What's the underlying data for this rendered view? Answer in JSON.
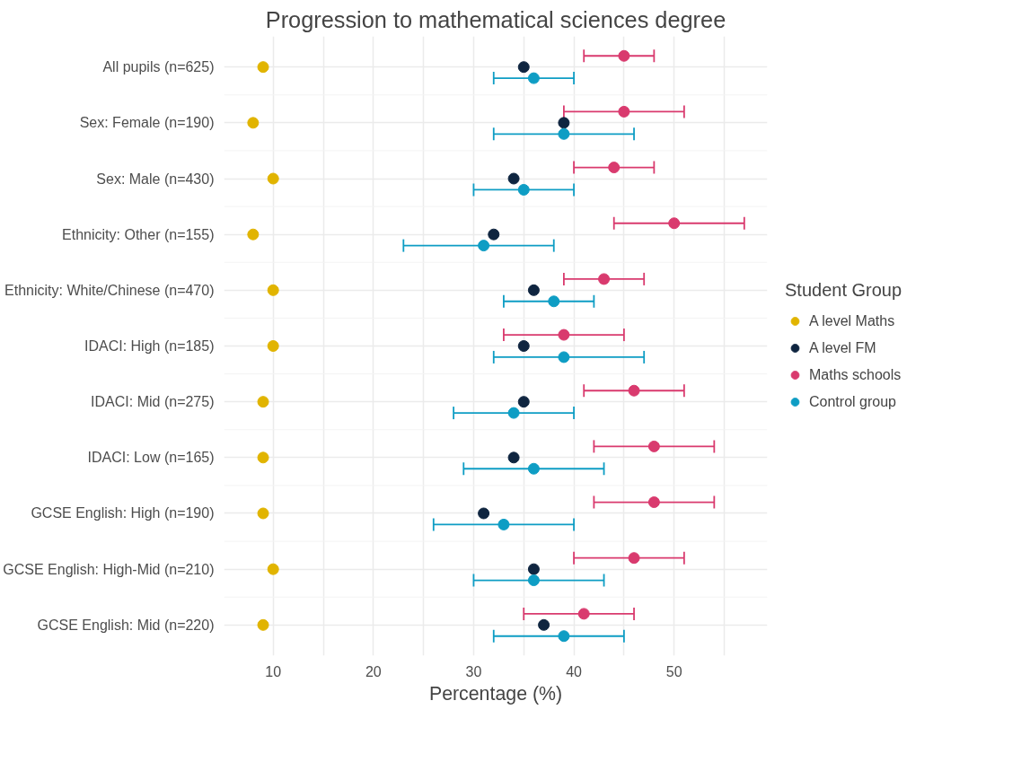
{
  "chart_data": {
    "type": "scatter",
    "orientation": "horizontal",
    "title": "Progression to mathematical sciences degree",
    "xlabel": "Percentage (%)",
    "legend_title": "Student Group",
    "categories": [
      "All pupils (n=625)",
      "Sex: Female (n=190)",
      "Sex: Male (n=430)",
      "Ethnicity: Other (n=155)",
      "Ethnicity: White/Chinese (n=470)",
      "IDACI: High (n=185)",
      "IDACI: Mid (n=275)",
      "IDACI: Low (n=165)",
      "GCSE English: High (n=190)",
      "GCSE English: High-Mid (n=210)",
      "GCSE English: Mid (n=220)"
    ],
    "series": [
      {
        "name": "A level Maths",
        "color": "#e1b400",
        "values": [
          9,
          8,
          10,
          8,
          10,
          10,
          9,
          9,
          9,
          10,
          9
        ]
      },
      {
        "name": "A level FM",
        "color": "#0f2540",
        "values": [
          35,
          39,
          34,
          32,
          36,
          35,
          35,
          34,
          31,
          36,
          37
        ]
      },
      {
        "name": "Maths schools",
        "color": "#d93a6e",
        "values": [
          45,
          45,
          44,
          50,
          43,
          39,
          46,
          48,
          48,
          46,
          41
        ],
        "errors": [
          [
            41,
            48
          ],
          [
            39,
            51
          ],
          [
            40,
            48
          ],
          [
            44,
            57
          ],
          [
            39,
            47
          ],
          [
            33,
            45
          ],
          [
            41,
            51
          ],
          [
            42,
            54
          ],
          [
            42,
            54
          ],
          [
            40,
            51
          ],
          [
            35,
            46
          ]
        ]
      },
      {
        "name": "Control group",
        "color": "#0e9dc4",
        "values": [
          36,
          39,
          35,
          31,
          38,
          39,
          34,
          36,
          33,
          36,
          39
        ],
        "errors": [
          [
            32,
            40
          ],
          [
            32,
            46
          ],
          [
            30,
            40
          ],
          [
            23,
            38
          ],
          [
            33,
            42
          ],
          [
            32,
            47
          ],
          [
            28,
            40
          ],
          [
            29,
            43
          ],
          [
            26,
            40
          ],
          [
            30,
            43
          ],
          [
            32,
            45
          ]
        ]
      }
    ],
    "xlim": [
      5.1,
      59.3
    ],
    "xticks": [
      10,
      {
        "value": 15,
        "label": null
      },
      20,
      {
        "value": 25,
        "label": null
      },
      30,
      {
        "value": 35,
        "label": null
      },
      40,
      {
        "value": 45,
        "label": null
      },
      50,
      {
        "value": 55,
        "label": null
      }
    ],
    "grid": true,
    "legend": "right",
    "marker": "circle"
  }
}
